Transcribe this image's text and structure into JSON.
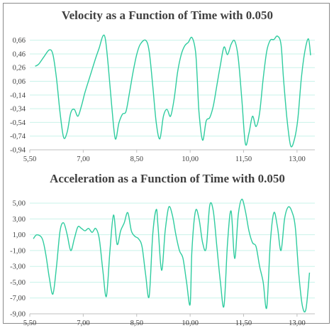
{
  "colors": {
    "series": "#2fcc9f",
    "grid": "#c9f3ea",
    "text": "#404040",
    "border": "#8a8a8a"
  },
  "chart_data": [
    {
      "type": "line",
      "title": "Velocity as a Function of Time with 0.050",
      "xlabel": "",
      "ylabel": "",
      "xlim": [
        5.5,
        13.5
      ],
      "ylim": [
        -0.94,
        0.76
      ],
      "grid": true,
      "legend": "none",
      "x_ticks": [
        "5,50",
        "7,00",
        "8,50",
        "10,00",
        "11,50",
        "13,00"
      ],
      "x_tick_values": [
        5.5,
        7.0,
        8.5,
        10.0,
        11.5,
        13.0
      ],
      "y_ticks": [
        "0,66",
        "0,46",
        "0,26",
        "0,06",
        "-0,14",
        "-0,34",
        "-0,54",
        "-0,74",
        "-0,94"
      ],
      "y_tick_values": [
        0.66,
        0.46,
        0.26,
        0.06,
        -0.14,
        -0.34,
        -0.54,
        -0.74,
        -0.94
      ],
      "series": [
        {
          "x": [
            5.65,
            5.75,
            5.9,
            6.05,
            6.15,
            6.25,
            6.35,
            6.45,
            6.55,
            6.65,
            6.75,
            6.85,
            6.95,
            7.05,
            7.2,
            7.35,
            7.45,
            7.55,
            7.62,
            7.7,
            7.8,
            7.9,
            8.0,
            8.1,
            8.2,
            8.3,
            8.4,
            8.5,
            8.6,
            8.75,
            8.85,
            8.95,
            9.05,
            9.15,
            9.25,
            9.35,
            9.45,
            9.55,
            9.65,
            9.75,
            9.85,
            9.95,
            10.05,
            10.15,
            10.2,
            10.25,
            10.35,
            10.45,
            10.55,
            10.65,
            10.75,
            10.85,
            10.95,
            11.05,
            11.15,
            11.25,
            11.35,
            11.45,
            11.55,
            11.65,
            11.75,
            11.85,
            11.95,
            12.05,
            12.15,
            12.25,
            12.35,
            12.45,
            12.55,
            12.62,
            12.72,
            12.82,
            12.92,
            13.02,
            13.12,
            13.22,
            13.32,
            13.38
          ],
          "y": [
            0.28,
            0.31,
            0.42,
            0.52,
            0.45,
            0.1,
            -0.4,
            -0.76,
            -0.68,
            -0.4,
            -0.35,
            -0.45,
            -0.3,
            -0.1,
            0.15,
            0.4,
            0.55,
            0.72,
            0.68,
            0.3,
            -0.3,
            -0.78,
            -0.55,
            -0.42,
            -0.38,
            -0.1,
            0.2,
            0.45,
            0.6,
            0.66,
            0.5,
            0.0,
            -0.55,
            -0.78,
            -0.45,
            -0.35,
            -0.45,
            -0.2,
            0.2,
            0.45,
            0.58,
            0.63,
            0.7,
            0.5,
            0.1,
            -0.4,
            -0.8,
            -0.52,
            -0.47,
            -0.3,
            0.0,
            0.3,
            0.56,
            0.45,
            0.6,
            0.65,
            0.4,
            -0.2,
            -0.85,
            -0.7,
            -0.45,
            -0.6,
            -0.4,
            0.1,
            0.5,
            0.66,
            0.67,
            0.72,
            0.6,
            0.1,
            -0.5,
            -0.88,
            -0.8,
            -0.5,
            0.1,
            0.5,
            0.68,
            0.44
          ]
        }
      ]
    },
    {
      "type": "line",
      "title": "Acceleration as a Function of Time with 0.050",
      "xlabel": "",
      "ylabel": "",
      "xlim": [
        5.5,
        13.5
      ],
      "ylim": [
        -9.0,
        6.0
      ],
      "grid": true,
      "legend": "none",
      "x_ticks": [
        "5,50",
        "7,00",
        "8,50",
        "10,00",
        "11,50",
        "13,00"
      ],
      "x_tick_values": [
        5.5,
        7.0,
        8.5,
        10.0,
        11.5,
        13.0
      ],
      "y_ticks": [
        "5,00",
        "3,00",
        "1,00",
        "-1,00",
        "-3,00",
        "-5,00",
        "-7,00",
        "-9,00"
      ],
      "y_tick_values": [
        5.0,
        3.0,
        1.0,
        -1.0,
        -3.0,
        -5.0,
        -7.0,
        -9.0
      ],
      "series": [
        {
          "x": [
            5.6,
            5.7,
            5.85,
            5.95,
            6.05,
            6.15,
            6.25,
            6.35,
            6.45,
            6.55,
            6.65,
            6.75,
            6.85,
            6.95,
            7.05,
            7.15,
            7.25,
            7.35,
            7.45,
            7.55,
            7.65,
            7.75,
            7.85,
            7.95,
            8.05,
            8.15,
            8.25,
            8.35,
            8.45,
            8.55,
            8.65,
            8.75,
            8.85,
            8.95,
            9.05,
            9.1,
            9.2,
            9.3,
            9.4,
            9.5,
            9.6,
            9.7,
            9.8,
            9.9,
            10.0,
            10.05,
            10.15,
            10.25,
            10.35,
            10.45,
            10.55,
            10.65,
            10.75,
            10.85,
            10.95,
            11.05,
            11.15,
            11.25,
            11.35,
            11.45,
            11.55,
            11.65,
            11.75,
            11.85,
            11.95,
            12.05,
            12.15,
            12.25,
            12.35,
            12.45,
            12.55,
            12.65,
            12.75,
            12.85,
            12.95,
            13.05,
            13.15,
            13.25,
            13.35
          ],
          "y": [
            0.5,
            1.0,
            0.5,
            -1.5,
            -4.5,
            -6.5,
            -3.0,
            1.5,
            2.5,
            1.0,
            -1.0,
            0.5,
            2.0,
            1.8,
            1.5,
            1.8,
            1.3,
            1.8,
            0.5,
            -3.5,
            -6.8,
            -1.0,
            3.5,
            -0.2,
            1.5,
            2.5,
            3.8,
            1.5,
            0.8,
            0.5,
            -0.5,
            -4.0,
            -6.8,
            1.0,
            4.2,
            2.0,
            -3.5,
            1.5,
            4.5,
            3.5,
            1.0,
            -1.0,
            -2.0,
            -5.0,
            -7.8,
            -1.0,
            4.0,
            3.0,
            0.0,
            -0.7,
            4.7,
            4.0,
            -0.5,
            -5.0,
            -8.0,
            0.0,
            4.0,
            -2.0,
            3.5,
            5.5,
            4.0,
            1.5,
            0.0,
            -0.5,
            -3.0,
            -5.0,
            -8.2,
            0.0,
            3.8,
            2.0,
            -1.0,
            3.0,
            4.5,
            4.0,
            2.0,
            -4.0,
            -8.0,
            -8.4,
            -3.8
          ]
        }
      ]
    }
  ]
}
